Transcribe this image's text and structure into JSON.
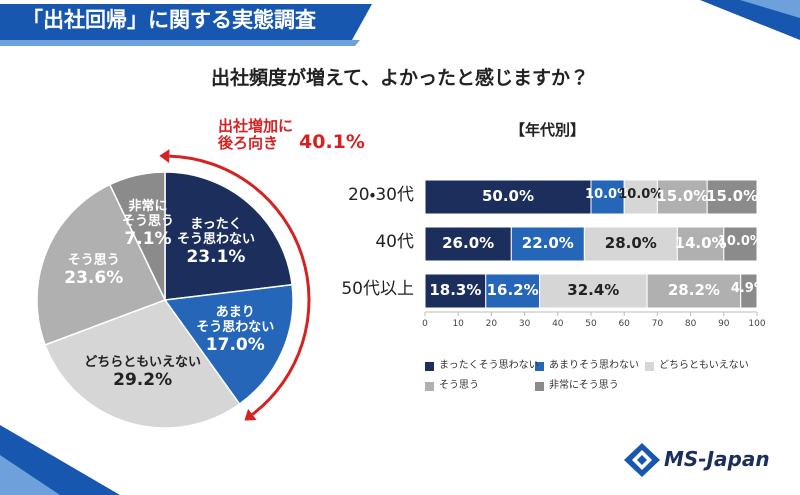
{
  "header": {
    "title": "「出社回帰」に関する実態調査"
  },
  "title": "出社頻度が増えて、よかったと感じますか？",
  "logo": "MS-Japan",
  "chart_data": [
    {
      "type": "pie",
      "categories": [
        "まったく\nそう思わない",
        "あまり\nそう思わない",
        "どちらともいえない",
        "そう思う",
        "非常に\nそう思う"
      ],
      "values": [
        23.1,
        17.0,
        29.2,
        23.6,
        7.1
      ],
      "value_labels": [
        "23.1%",
        "17.0%",
        "29.2%",
        "23.6%",
        "7.1%"
      ],
      "colors": [
        "#1c2f5c",
        "#2566b8",
        "#d6d6d6",
        "#b0b0b0",
        "#8b8b8b"
      ],
      "annotation": {
        "text": "出社増加に\n後ろ向き",
        "value": 40.1,
        "value_label": "40.1%",
        "color": "#d62222"
      }
    },
    {
      "type": "stacked-bar-horizontal",
      "title": "【年代別】",
      "categories": [
        "20・30代",
        "40代",
        "50代以上"
      ],
      "series": [
        {
          "name": "まったくそう思わない",
          "color": "#1c2f5c",
          "values": [
            50.0,
            26.0,
            18.3
          ],
          "value_labels": [
            "50.0%",
            "26.0%",
            "18.3%"
          ]
        },
        {
          "name": "あまりそう思わない",
          "color": "#2566b8",
          "values": [
            10.0,
            22.0,
            16.2
          ],
          "value_labels": [
            "10.0%",
            "22.0%",
            "16.2%"
          ]
        },
        {
          "name": "どちらともいえない",
          "color": "#d6d6d6",
          "values": [
            10.0,
            28.0,
            32.4
          ],
          "value_labels": [
            "10.0%",
            "28.0%",
            "32.4%"
          ]
        },
        {
          "name": "そう思う",
          "color": "#b0b0b0",
          "values": [
            15.0,
            14.0,
            28.2
          ],
          "value_labels": [
            "15.0%",
            "14.0%",
            "28.2%"
          ]
        },
        {
          "name": "非常にそう思う",
          "color": "#8b8b8b",
          "values": [
            15.0,
            10.0,
            4.9
          ],
          "value_labels": [
            "15.0%",
            "10.0%",
            "4.9%"
          ]
        }
      ],
      "xlim": [
        0,
        100
      ],
      "xticks": [
        0,
        10,
        20,
        30,
        40,
        50,
        60,
        70,
        80,
        90,
        100
      ],
      "legend": "bottom"
    }
  ]
}
